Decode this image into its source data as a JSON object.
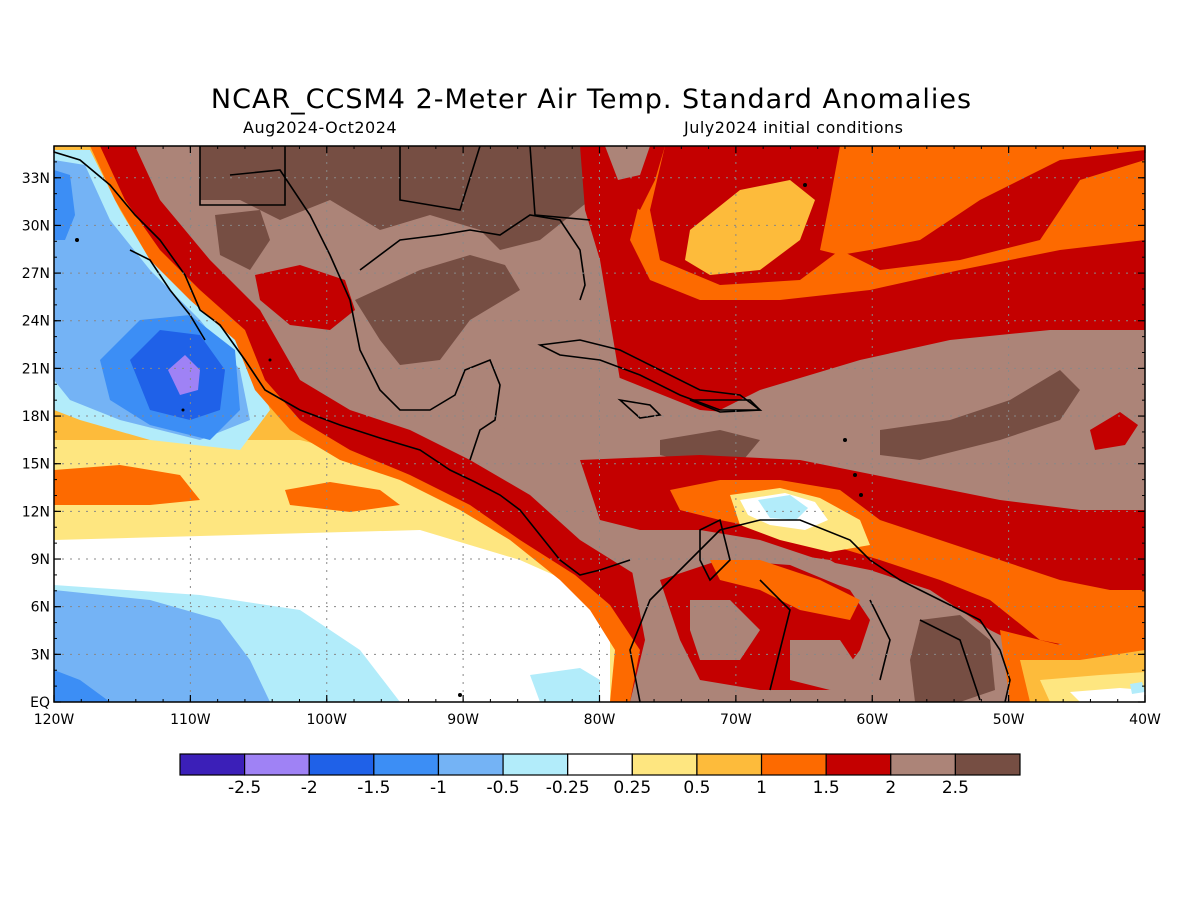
{
  "title": "NCAR_CCSM4 2-Meter Air Temp. Standard Anomalies",
  "subtitle_left": "Aug2024-Oct2024",
  "subtitle_right": "July2024 initial conditions",
  "map": {
    "lat_labels": [
      "33N",
      "30N",
      "27N",
      "24N",
      "21N",
      "18N",
      "15N",
      "12N",
      "9N",
      "6N",
      "3N",
      "EQ"
    ],
    "lon_labels": [
      "120W",
      "110W",
      "100W",
      "90W",
      "80W",
      "70W",
      "60W",
      "50W",
      "40W"
    ]
  },
  "legend": {
    "colors": [
      "#3b1fb8",
      "#9f82f5",
      "#1f61e8",
      "#3c8ef5",
      "#74b3f5",
      "#b2ecfa",
      "#ffffff",
      "#fee680",
      "#fdbb3b",
      "#fd6a00",
      "#c40000",
      "#ac8478",
      "#764e43"
    ],
    "labels": [
      "-2.5",
      "-2",
      "-1.5",
      "-1",
      "-0.5",
      "-0.25",
      "0.25",
      "0.5",
      "1",
      "1.5",
      "2",
      "2.5"
    ]
  }
}
